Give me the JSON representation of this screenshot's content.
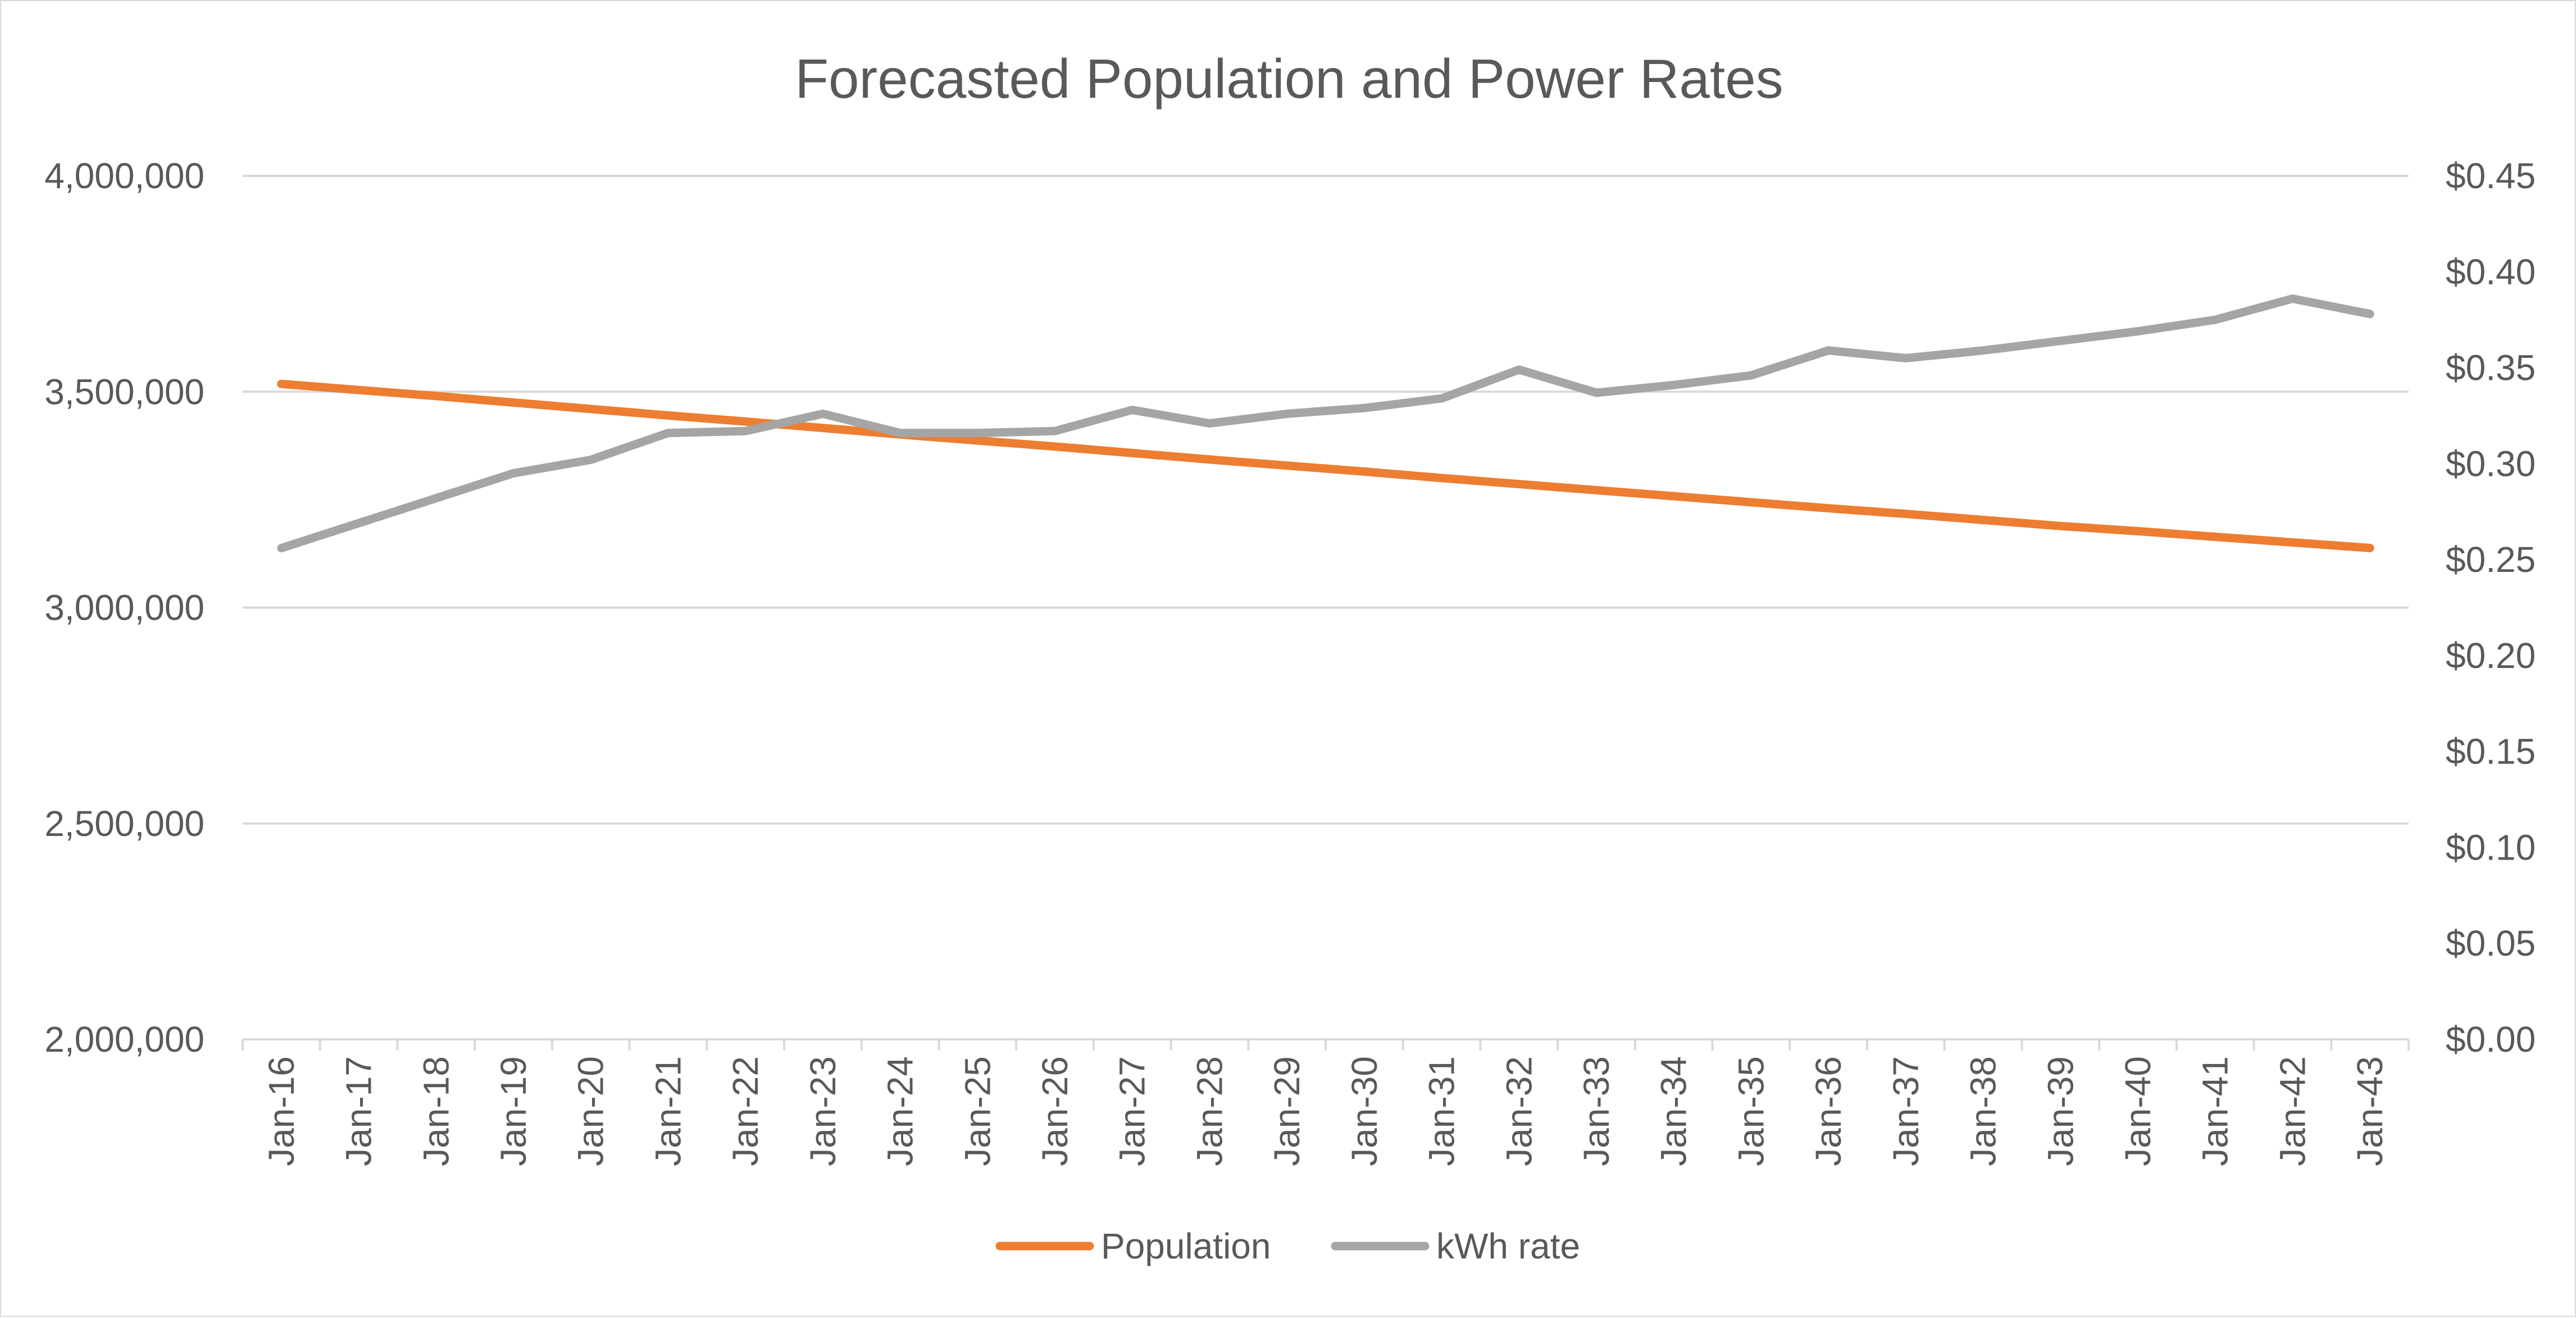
{
  "chart_data": {
    "type": "line",
    "title": "Forecasted Population and Power Rates",
    "xlabel": "",
    "ylabel": "",
    "y2label": "",
    "grid": true,
    "legend_position": "bottom",
    "categories": [
      "Jan-16",
      "Jan-17",
      "Jan-18",
      "Jan-19",
      "Jan-20",
      "Jan-21",
      "Jan-22",
      "Jan-23",
      "Jan-24",
      "Jan-25",
      "Jan-26",
      "Jan-27",
      "Jan-28",
      "Jan-29",
      "Jan-30",
      "Jan-31",
      "Jan-32",
      "Jan-33",
      "Jan-34",
      "Jan-35",
      "Jan-36",
      "Jan-37",
      "Jan-38",
      "Jan-39",
      "Jan-40",
      "Jan-41",
      "Jan-42",
      "Jan-43"
    ],
    "y_left": {
      "ylim": [
        2000000,
        4000000
      ],
      "ticks": [
        4000000,
        3500000,
        3000000,
        2500000,
        2000000
      ],
      "tick_labels": [
        "4,000,000",
        "3,500,000",
        "3,000,000",
        "2,500,000",
        "2,000,000"
      ]
    },
    "y_right": {
      "ylim": [
        0,
        0.45
      ],
      "ticks": [
        0.45,
        0.4,
        0.35,
        0.3,
        0.25,
        0.2,
        0.15,
        0.1,
        0.05,
        0.0
      ],
      "tick_labels": [
        "$0.45",
        "$0.40",
        "$0.35",
        "$0.30",
        "$0.25",
        "$0.20",
        "$0.15",
        "$0.10",
        "$0.05",
        "$0.00"
      ]
    },
    "series": [
      {
        "name": "Population",
        "axis": "left",
        "color": "#ed7d31",
        "values": [
          3518000,
          3504000,
          3490000,
          3475000,
          3460000,
          3445000,
          3431000,
          3416000,
          3401000,
          3387000,
          3373000,
          3358000,
          3343000,
          3329000,
          3315000,
          3300000,
          3286000,
          3272000,
          3258000,
          3244000,
          3230000,
          3217000,
          3203000,
          3189000,
          3177000,
          3164000,
          3151000,
          3138000
        ]
      },
      {
        "name": "kWh rate",
        "axis": "right",
        "color": "#a5a5a5",
        "values": [
          0.256,
          0.269,
          0.282,
          0.295,
          0.302,
          0.316,
          0.317,
          0.326,
          0.316,
          0.316,
          0.317,
          0.328,
          0.321,
          0.326,
          0.329,
          0.334,
          0.349,
          0.337,
          0.341,
          0.346,
          0.359,
          0.355,
          0.359,
          0.364,
          0.369,
          0.375,
          0.386,
          0.378
        ]
      }
    ]
  }
}
